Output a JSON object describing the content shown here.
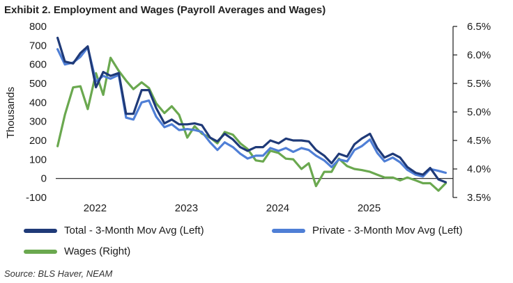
{
  "title": "Exhibit 2. Employment and Wages (Payroll Averages and Wages)",
  "source": "Source: BLS Haver, NEAM",
  "chart_data": {
    "type": "line",
    "ylabel": "Thousands",
    "ylim": [
      -100,
      800
    ],
    "yticks": [
      "-100",
      "0",
      "100",
      "200",
      "300",
      "400",
      "500",
      "600",
      "700",
      "800"
    ],
    "y2lim": [
      3.5,
      6.5
    ],
    "y2ticks": [
      "3.5%",
      "4.0%",
      "4.5%",
      "5.0%",
      "5.5%",
      "6.0%",
      "6.5%"
    ],
    "xlim": [
      2021.6,
      2025.95
    ],
    "xticks": [
      {
        "label": "2022",
        "x": 2022.0
      },
      {
        "label": "2023",
        "x": 2023.0
      },
      {
        "label": "2024",
        "x": 2024.0
      },
      {
        "label": "2025",
        "x": 2025.0
      }
    ],
    "series": [
      {
        "name": "Total - 3-Month Mov Avg (Left)",
        "axis": "left",
        "color": "#1f3a78",
        "x": [
          2021.62,
          2021.7,
          2021.79,
          2021.87,
          2021.95,
          2022.04,
          2022.12,
          2022.2,
          2022.29,
          2022.37,
          2022.45,
          2022.54,
          2022.62,
          2022.7,
          2022.79,
          2022.87,
          2022.95,
          2023.04,
          2023.12,
          2023.2,
          2023.29,
          2023.37,
          2023.45,
          2023.54,
          2023.62,
          2023.7,
          2023.79,
          2023.87,
          2023.95,
          2024.04,
          2024.12,
          2024.2,
          2024.29,
          2024.37,
          2024.45,
          2024.54,
          2024.62,
          2024.7,
          2024.79,
          2024.87,
          2024.95,
          2025.04,
          2025.12,
          2025.2,
          2025.29,
          2025.37,
          2025.45,
          2025.54,
          2025.62,
          2025.7,
          2025.79,
          2025.87
        ],
        "y": [
          740,
          615,
          605,
          660,
          695,
          480,
          560,
          540,
          555,
          340,
          340,
          465,
          465,
          370,
          290,
          310,
          285,
          285,
          290,
          280,
          215,
          195,
          235,
          205,
          165,
          145,
          165,
          165,
          200,
          185,
          210,
          200,
          200,
          195,
          150,
          120,
          80,
          130,
          115,
          180,
          210,
          235,
          160,
          110,
          130,
          110,
          60,
          30,
          20,
          55,
          -5,
          -20
        ]
      },
      {
        "name": "Private - 3-Month Mov Avg (Left)",
        "axis": "left",
        "color": "#4f7fd6",
        "x": [
          2021.62,
          2021.7,
          2021.79,
          2021.87,
          2021.95,
          2022.04,
          2022.12,
          2022.2,
          2022.29,
          2022.37,
          2022.45,
          2022.54,
          2022.62,
          2022.7,
          2022.79,
          2022.87,
          2022.95,
          2023.04,
          2023.12,
          2023.2,
          2023.29,
          2023.37,
          2023.45,
          2023.54,
          2023.62,
          2023.7,
          2023.79,
          2023.87,
          2023.95,
          2024.04,
          2024.12,
          2024.2,
          2024.29,
          2024.37,
          2024.45,
          2024.54,
          2024.62,
          2024.7,
          2024.79,
          2024.87,
          2024.95,
          2025.04,
          2025.12,
          2025.2,
          2025.29,
          2025.37,
          2025.45,
          2025.54,
          2025.62,
          2025.7,
          2025.79,
          2025.87
        ],
        "y": [
          680,
          600,
          610,
          640,
          690,
          510,
          540,
          525,
          545,
          320,
          310,
          400,
          410,
          325,
          270,
          285,
          255,
          260,
          255,
          245,
          190,
          150,
          190,
          165,
          130,
          105,
          120,
          120,
          160,
          145,
          160,
          140,
          160,
          150,
          120,
          95,
          60,
          100,
          90,
          150,
          170,
          205,
          135,
          90,
          110,
          85,
          45,
          20,
          10,
          50,
          40,
          30
        ]
      },
      {
        "name": "Wages (Right)",
        "axis": "right",
        "color": "#6aa84f",
        "x": [
          2021.62,
          2021.7,
          2021.79,
          2021.87,
          2021.95,
          2022.04,
          2022.12,
          2022.2,
          2022.29,
          2022.37,
          2022.45,
          2022.54,
          2022.62,
          2022.7,
          2022.79,
          2022.87,
          2022.95,
          2023.04,
          2023.12,
          2023.2,
          2023.29,
          2023.37,
          2023.45,
          2023.54,
          2023.62,
          2023.7,
          2023.79,
          2023.87,
          2023.95,
          2024.04,
          2024.12,
          2024.2,
          2024.29,
          2024.37,
          2024.45,
          2024.54,
          2024.62,
          2024.7,
          2024.79,
          2024.87,
          2024.95,
          2025.04,
          2025.12,
          2025.2,
          2025.29,
          2025.37,
          2025.45,
          2025.54,
          2025.62,
          2025.7,
          2025.79,
          2025.87
        ],
        "y": [
          4.4,
          4.95,
          5.43,
          5.45,
          5.05,
          5.68,
          5.3,
          5.95,
          5.72,
          5.55,
          5.4,
          5.52,
          5.42,
          5.15,
          4.98,
          5.1,
          4.95,
          4.55,
          4.75,
          4.62,
          4.55,
          4.45,
          4.65,
          4.6,
          4.45,
          4.35,
          4.15,
          4.13,
          4.32,
          4.28,
          4.18,
          4.17,
          4.0,
          4.1,
          3.7,
          3.95,
          3.95,
          4.18,
          4.05,
          4.0,
          3.98,
          3.95,
          3.9,
          3.85,
          3.85,
          3.8,
          3.85,
          3.8,
          3.75,
          3.75,
          3.62,
          3.75
        ]
      }
    ]
  }
}
